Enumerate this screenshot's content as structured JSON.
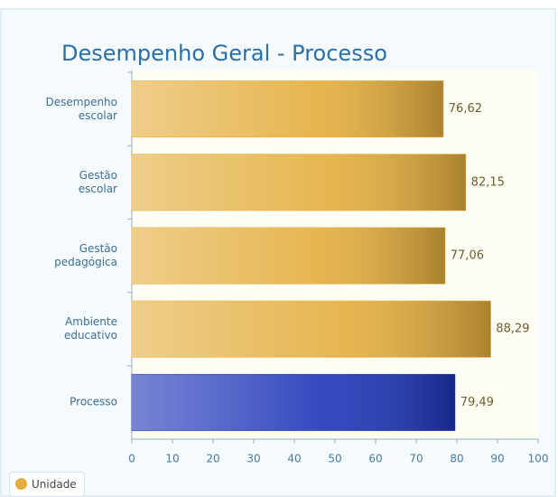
{
  "chart_data": {
    "type": "hbar",
    "title": "Desempenho Geral - Processo",
    "categories": [
      "Desempenho escolar",
      "Gestão escolar",
      "Gestão pedagógica",
      "Ambiente educativo",
      "Processo"
    ],
    "series": [
      {
        "name": "Unidade",
        "color": "#e3ad3c",
        "values": [
          76.62,
          82.15,
          77.06,
          88.29,
          79.49
        ],
        "value_labels": [
          "76,62",
          "82,15",
          "77,06",
          "88,29",
          "79,49"
        ],
        "bar_colors": [
          "#e3ad3c",
          "#e3ad3c",
          "#e3ad3c",
          "#e3ad3c",
          "#1e34b8"
        ]
      }
    ],
    "xlim": [
      0,
      100
    ],
    "xticks": [
      0,
      10,
      20,
      30,
      40,
      50,
      60,
      70,
      80,
      90,
      100
    ],
    "legend": "bottom-left"
  }
}
